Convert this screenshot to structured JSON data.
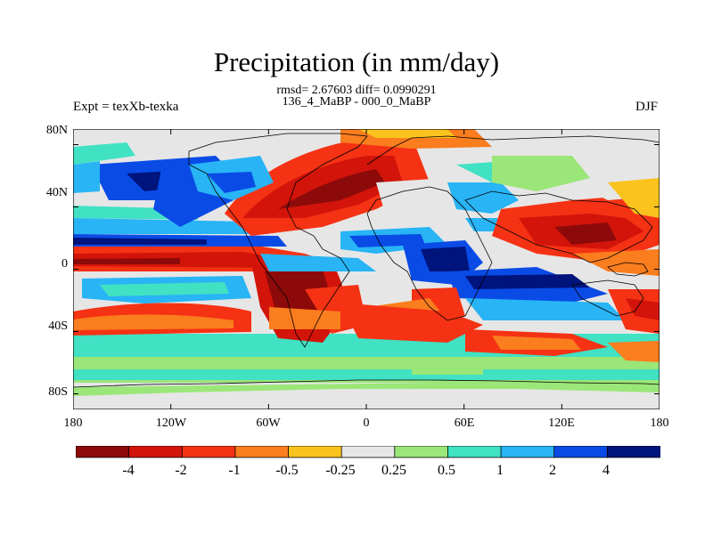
{
  "chart_data": {
    "type": "heatmap",
    "title": "Precipitation (in mm/day)",
    "stats_line": "rmsd= 2.67603 diff= 0.0990291",
    "comparison": "136_4_MaBP - 000_0_MaBP",
    "left_label": "Expt = texXb-texka",
    "right_label": "DJF",
    "x_ticks": [
      "180",
      "120W",
      "60W",
      "0",
      "60E",
      "120E",
      "180"
    ],
    "y_ticks": [
      "80N",
      "40N",
      "0",
      "40S",
      "80S"
    ],
    "xlim": [
      -180,
      180
    ],
    "ylim": [
      -90,
      90
    ],
    "colorbar": {
      "labels": [
        "-4",
        "-2",
        "-1",
        "-0.5",
        "-0.25",
        "0.25",
        "0.5",
        "1",
        "2",
        "4"
      ],
      "colors": [
        "#8c0a0a",
        "#d2140a",
        "#f53214",
        "#fa7d1e",
        "#fac31e",
        "#e6e6e6",
        "#9be678",
        "#41e1c3",
        "#28b4f5",
        "#0a4be6",
        "#00147d"
      ]
    }
  }
}
